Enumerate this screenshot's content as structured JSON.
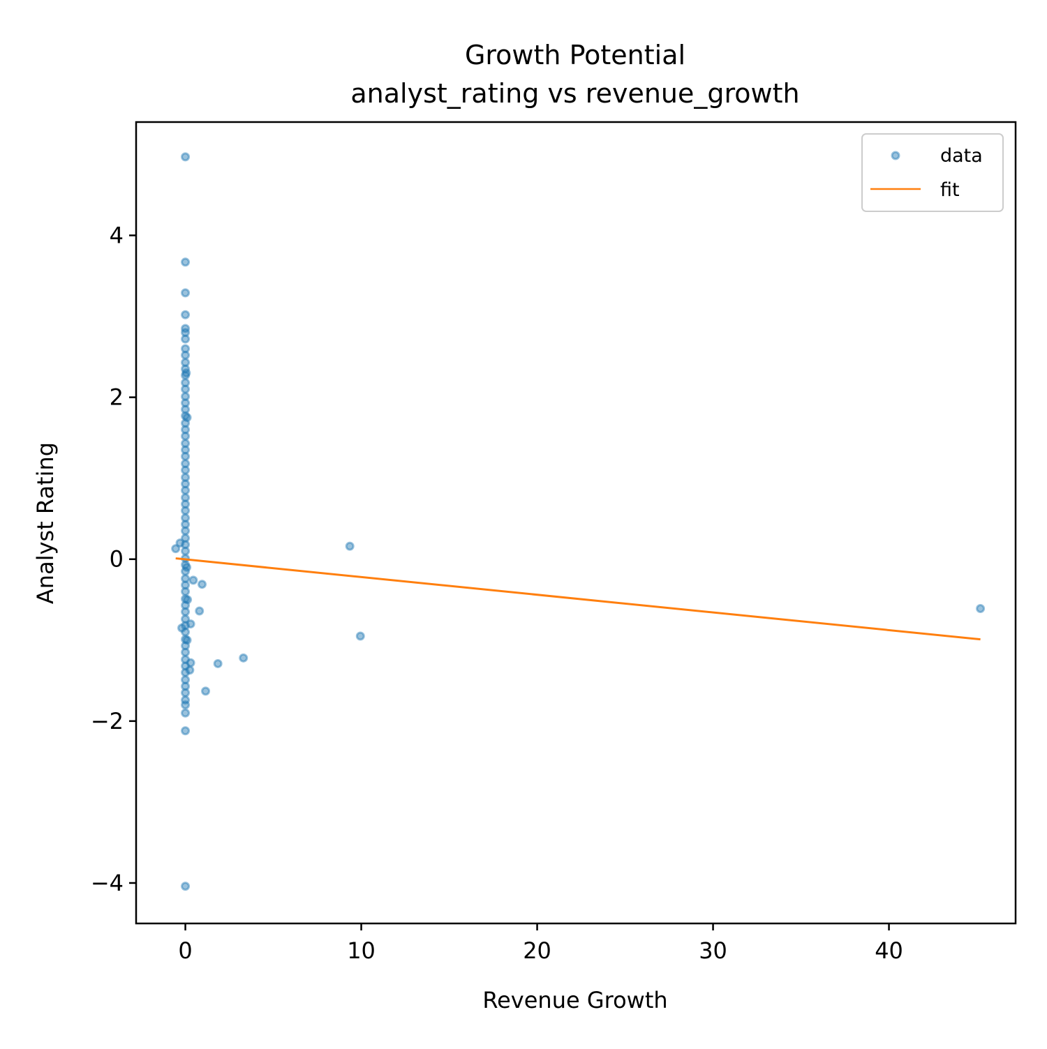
{
  "chart_data": {
    "type": "scatter",
    "title": "Growth Potential",
    "subtitle": "analyst_rating vs revenue_growth",
    "xlabel": "Revenue Growth",
    "ylabel": "Analyst Rating",
    "xlim": [
      -2.8,
      47.2
    ],
    "ylim": [
      -4.5,
      5.4
    ],
    "x_ticks": [
      0,
      10,
      20,
      30,
      40
    ],
    "y_ticks": [
      -4,
      -2,
      0,
      2,
      4
    ],
    "x_tick_labels": [
      "0",
      "10",
      "20",
      "30",
      "40"
    ],
    "y_tick_labels": [
      "−4",
      "−2",
      "0",
      "2",
      "4"
    ],
    "grid": false,
    "legend_position": "top-right",
    "series": [
      {
        "name": "data",
        "kind": "scatter",
        "color": "#1f77b4",
        "opacity": 0.45,
        "points": [
          [
            0,
            4.97
          ],
          [
            0,
            3.67
          ],
          [
            0,
            3.29
          ],
          [
            0,
            3.02
          ],
          [
            0,
            2.85
          ],
          [
            0,
            2.8
          ],
          [
            0,
            2.72
          ],
          [
            0,
            2.6
          ],
          [
            0,
            2.52
          ],
          [
            0,
            2.43
          ],
          [
            0,
            2.35
          ],
          [
            0,
            2.27
          ],
          [
            0,
            2.18
          ],
          [
            0,
            2.1
          ],
          [
            0,
            2.01
          ],
          [
            0,
            1.93
          ],
          [
            0,
            1.85
          ],
          [
            0,
            1.77
          ],
          [
            0,
            1.68
          ],
          [
            0,
            1.6
          ],
          [
            0,
            1.52
          ],
          [
            0,
            1.43
          ],
          [
            0,
            1.35
          ],
          [
            0,
            1.27
          ],
          [
            0,
            1.18
          ],
          [
            0,
            1.1
          ],
          [
            0,
            1.01
          ],
          [
            0,
            0.93
          ],
          [
            0,
            0.85
          ],
          [
            0,
            0.76
          ],
          [
            0,
            0.68
          ],
          [
            0,
            0.6
          ],
          [
            0,
            0.51
          ],
          [
            0,
            0.43
          ],
          [
            0,
            0.35
          ],
          [
            0,
            0.26
          ],
          [
            0,
            0.18
          ],
          [
            0,
            0.1
          ],
          [
            0,
            0.01
          ],
          [
            0,
            -0.07
          ],
          [
            0,
            -0.15
          ],
          [
            0,
            -0.24
          ],
          [
            0,
            -0.32
          ],
          [
            0,
            -0.4
          ],
          [
            0,
            -0.49
          ],
          [
            0,
            -0.57
          ],
          [
            0,
            -0.65
          ],
          [
            0,
            -0.74
          ],
          [
            0,
            -0.82
          ],
          [
            0,
            -0.9
          ],
          [
            0,
            -0.99
          ],
          [
            0,
            -1.07
          ],
          [
            0,
            -1.15
          ],
          [
            0,
            -1.24
          ],
          [
            0,
            -1.32
          ],
          [
            0,
            -1.4
          ],
          [
            0,
            -1.49
          ],
          [
            0,
            -1.57
          ],
          [
            0,
            -1.65
          ],
          [
            0,
            -1.74
          ],
          [
            0,
            -1.8
          ],
          [
            0,
            -1.9
          ],
          [
            0,
            -2.12
          ],
          [
            0,
            -4.04
          ],
          [
            0.1,
            1.75
          ],
          [
            0.05,
            2.3
          ],
          [
            0.08,
            -0.1
          ],
          [
            0.1,
            -1.0
          ],
          [
            0.12,
            -0.5
          ],
          [
            -0.55,
            0.13
          ],
          [
            -0.3,
            0.2
          ],
          [
            -0.2,
            -0.85
          ],
          [
            0.3,
            -0.8
          ],
          [
            0.3,
            -1.28
          ],
          [
            0.25,
            -1.37
          ],
          [
            0.45,
            -0.26
          ],
          [
            0.8,
            -0.64
          ],
          [
            0.95,
            -0.31
          ],
          [
            1.15,
            -1.63
          ],
          [
            1.85,
            -1.29
          ],
          [
            3.3,
            -1.22
          ],
          [
            9.35,
            0.16
          ],
          [
            9.95,
            -0.95
          ],
          [
            45.2,
            -0.61
          ]
        ]
      },
      {
        "name": "fit",
        "kind": "line",
        "color": "#ff7f0e",
        "points": [
          [
            -0.55,
            0.01
          ],
          [
            45.2,
            -0.99
          ]
        ]
      }
    ]
  }
}
